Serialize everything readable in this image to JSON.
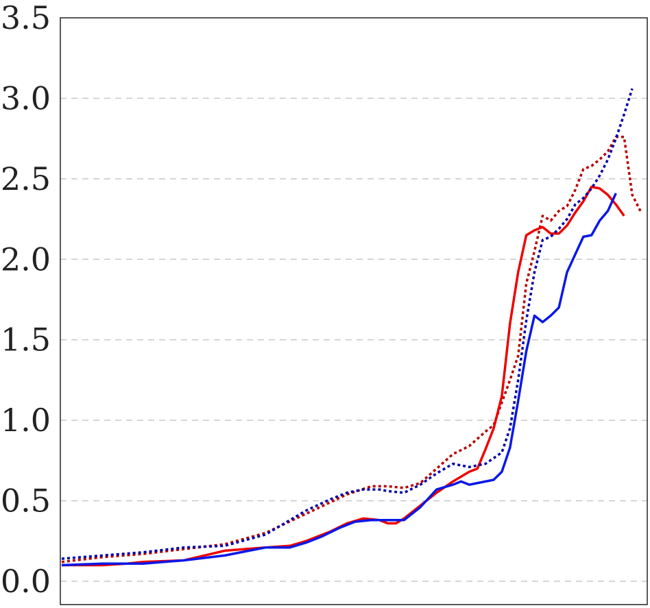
{
  "chart_data": {
    "type": "line",
    "title": "",
    "xlabel": "",
    "ylabel": "",
    "ylim": [
      -0.15,
      3.5
    ],
    "xlim": [
      0,
      71
    ],
    "grid": {
      "horizontal": true,
      "style": "dashed"
    },
    "yticks": [
      {
        "value": 0.0,
        "label": "0.0"
      },
      {
        "value": 0.5,
        "label": "0.5"
      },
      {
        "value": 1.0,
        "label": "1.0"
      },
      {
        "value": 1.5,
        "label": "1.5"
      },
      {
        "value": 2.0,
        "label": "2.0"
      },
      {
        "value": 2.5,
        "label": "2.5"
      },
      {
        "value": 3.0,
        "label": "3.0"
      },
      {
        "value": 3.5,
        "label": "3.5"
      }
    ],
    "series": [
      {
        "color": "#b80000",
        "dash": "dotted",
        "points": [
          [
            0,
            0.12
          ],
          [
            5,
            0.15
          ],
          [
            10,
            0.17
          ],
          [
            15,
            0.2
          ],
          [
            20,
            0.23
          ],
          [
            25,
            0.3
          ],
          [
            30,
            0.42
          ],
          [
            35,
            0.54
          ],
          [
            38,
            0.59
          ],
          [
            40,
            0.59
          ],
          [
            42,
            0.58
          ],
          [
            44,
            0.61
          ],
          [
            46,
            0.7
          ],
          [
            48,
            0.79
          ],
          [
            50,
            0.84
          ],
          [
            52,
            0.93
          ],
          [
            53,
            0.97
          ],
          [
            55,
            1.25
          ],
          [
            56,
            1.4
          ],
          [
            57,
            1.85
          ],
          [
            58,
            2.05
          ],
          [
            59,
            2.27
          ],
          [
            60,
            2.24
          ],
          [
            61,
            2.3
          ],
          [
            62,
            2.33
          ],
          [
            63,
            2.43
          ],
          [
            64,
            2.56
          ],
          [
            65,
            2.58
          ],
          [
            66,
            2.62
          ],
          [
            67,
            2.67
          ],
          [
            68,
            2.76
          ],
          [
            69,
            2.76
          ],
          [
            70,
            2.4
          ],
          [
            71,
            2.3
          ]
        ]
      },
      {
        "color": "#ee0000",
        "dash": "solid",
        "points": [
          [
            0,
            0.1
          ],
          [
            5,
            0.1
          ],
          [
            8,
            0.11
          ],
          [
            10,
            0.12
          ],
          [
            15,
            0.13
          ],
          [
            20,
            0.19
          ],
          [
            25,
            0.21
          ],
          [
            28,
            0.22
          ],
          [
            30,
            0.25
          ],
          [
            33,
            0.31
          ],
          [
            35,
            0.36
          ],
          [
            37,
            0.39
          ],
          [
            39,
            0.38
          ],
          [
            40,
            0.36
          ],
          [
            41,
            0.36
          ],
          [
            42,
            0.39
          ],
          [
            44,
            0.47
          ],
          [
            46,
            0.55
          ],
          [
            48,
            0.62
          ],
          [
            50,
            0.68
          ],
          [
            51,
            0.7
          ],
          [
            52,
            0.82
          ],
          [
            53,
            0.95
          ],
          [
            54,
            1.15
          ],
          [
            55,
            1.6
          ],
          [
            56,
            1.92
          ],
          [
            57,
            2.15
          ],
          [
            58,
            2.18
          ],
          [
            59,
            2.2
          ],
          [
            60,
            2.16
          ],
          [
            61,
            2.16
          ],
          [
            62,
            2.21
          ],
          [
            63,
            2.29
          ],
          [
            64,
            2.36
          ],
          [
            65,
            2.45
          ],
          [
            66,
            2.44
          ],
          [
            67,
            2.4
          ],
          [
            68,
            2.34
          ],
          [
            69,
            2.27
          ]
        ]
      },
      {
        "color": "#0000aa",
        "dash": "dotted",
        "points": [
          [
            0,
            0.14
          ],
          [
            5,
            0.16
          ],
          [
            10,
            0.18
          ],
          [
            15,
            0.21
          ],
          [
            20,
            0.22
          ],
          [
            25,
            0.29
          ],
          [
            30,
            0.44
          ],
          [
            33,
            0.51
          ],
          [
            35,
            0.55
          ],
          [
            37,
            0.57
          ],
          [
            39,
            0.57
          ],
          [
            40,
            0.56
          ],
          [
            42,
            0.55
          ],
          [
            44,
            0.6
          ],
          [
            46,
            0.67
          ],
          [
            48,
            0.73
          ],
          [
            50,
            0.71
          ],
          [
            52,
            0.73
          ],
          [
            54,
            0.8
          ],
          [
            55,
            0.95
          ],
          [
            56,
            1.25
          ],
          [
            57,
            1.62
          ],
          [
            58,
            1.92
          ],
          [
            59,
            2.12
          ],
          [
            60,
            2.14
          ],
          [
            61,
            2.19
          ],
          [
            62,
            2.25
          ],
          [
            63,
            2.34
          ],
          [
            64,
            2.38
          ],
          [
            65,
            2.44
          ],
          [
            66,
            2.52
          ],
          [
            67,
            2.62
          ],
          [
            68,
            2.75
          ],
          [
            69,
            2.9
          ],
          [
            70,
            3.06
          ]
        ]
      },
      {
        "color": "#0a18e8",
        "dash": "solid",
        "points": [
          [
            0,
            0.1
          ],
          [
            5,
            0.11
          ],
          [
            10,
            0.11
          ],
          [
            15,
            0.13
          ],
          [
            20,
            0.16
          ],
          [
            23,
            0.19
          ],
          [
            25,
            0.21
          ],
          [
            28,
            0.21
          ],
          [
            30,
            0.24
          ],
          [
            32,
            0.28
          ],
          [
            34,
            0.33
          ],
          [
            36,
            0.37
          ],
          [
            38,
            0.38
          ],
          [
            40,
            0.38
          ],
          [
            42,
            0.38
          ],
          [
            44,
            0.46
          ],
          [
            46,
            0.57
          ],
          [
            48,
            0.6
          ],
          [
            49,
            0.62
          ],
          [
            50,
            0.6
          ],
          [
            52,
            0.62
          ],
          [
            53,
            0.63
          ],
          [
            54,
            0.68
          ],
          [
            55,
            0.83
          ],
          [
            56,
            1.12
          ],
          [
            57,
            1.43
          ],
          [
            58,
            1.65
          ],
          [
            59,
            1.61
          ],
          [
            60,
            1.65
          ],
          [
            61,
            1.7
          ],
          [
            62,
            1.92
          ],
          [
            63,
            2.03
          ],
          [
            64,
            2.14
          ],
          [
            65,
            2.15
          ],
          [
            66,
            2.24
          ],
          [
            67,
            2.3
          ],
          [
            68,
            2.41
          ]
        ]
      }
    ]
  }
}
